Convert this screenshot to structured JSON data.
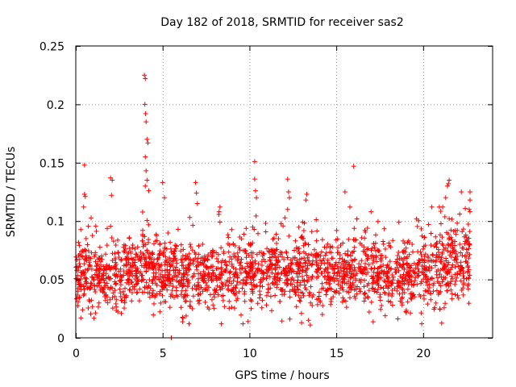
{
  "chart_data": {
    "type": "scatter",
    "title": "Day 182 of 2018, SRMTID for receiver sas2",
    "xlabel": "GPS time / hours",
    "ylabel": "SRMTID / TECUs",
    "xlim": [
      0,
      24
    ],
    "ylim": [
      0,
      0.25
    ],
    "x_ticks": [
      0,
      5,
      10,
      15,
      20
    ],
    "x_tick_labels": [
      "0",
      "5",
      "10",
      "15",
      "20"
    ],
    "y_ticks": [
      0,
      0.05,
      0.1,
      0.15,
      0.2,
      0.25
    ],
    "y_tick_labels": [
      "0",
      "0.05",
      "0.1",
      "0.15",
      "0.2",
      "0.25"
    ],
    "grid": true,
    "marker": "+",
    "series_color": "#ff0000",
    "data_range_hours": [
      0,
      22.7
    ],
    "series": [
      {
        "name": "SRMTID",
        "generated": true,
        "seed": 182,
        "count": 2200,
        "baseline_profile": [
          [
            0,
            0.055
          ],
          [
            2,
            0.052
          ],
          [
            4,
            0.062
          ],
          [
            6,
            0.055
          ],
          [
            8,
            0.052
          ],
          [
            10,
            0.056
          ],
          [
            12,
            0.058
          ],
          [
            14,
            0.056
          ],
          [
            16,
            0.057
          ],
          [
            18,
            0.055
          ],
          [
            19.5,
            0.05
          ],
          [
            21,
            0.062
          ],
          [
            22.7,
            0.065
          ]
        ],
        "spread": 0.015,
        "outliers": [
          {
            "x": 0.5,
            "y": 0.148
          },
          {
            "x": 0.5,
            "y": 0.123
          },
          {
            "x": 0.55,
            "y": 0.121
          },
          {
            "x": 0.45,
            "y": 0.112
          },
          {
            "x": 2.0,
            "y": 0.137
          },
          {
            "x": 2.1,
            "y": 0.135
          },
          {
            "x": 2.05,
            "y": 0.122
          },
          {
            "x": 3.95,
            "y": 0.225
          },
          {
            "x": 4.0,
            "y": 0.222
          },
          {
            "x": 3.98,
            "y": 0.2
          },
          {
            "x": 4.02,
            "y": 0.192
          },
          {
            "x": 4.05,
            "y": 0.185
          },
          {
            "x": 4.1,
            "y": 0.17
          },
          {
            "x": 4.15,
            "y": 0.167
          },
          {
            "x": 4.0,
            "y": 0.155
          },
          {
            "x": 4.05,
            "y": 0.143
          },
          {
            "x": 4.1,
            "y": 0.135
          },
          {
            "x": 4.0,
            "y": 0.13
          },
          {
            "x": 4.2,
            "y": 0.126
          },
          {
            "x": 5.0,
            "y": 0.133
          },
          {
            "x": 5.1,
            "y": 0.12
          },
          {
            "x": 5.5,
            "y": 0.0
          },
          {
            "x": 6.9,
            "y": 0.133
          },
          {
            "x": 6.95,
            "y": 0.124
          },
          {
            "x": 7.0,
            "y": 0.115
          },
          {
            "x": 8.3,
            "y": 0.112
          },
          {
            "x": 8.25,
            "y": 0.108
          },
          {
            "x": 10.3,
            "y": 0.151
          },
          {
            "x": 10.3,
            "y": 0.136
          },
          {
            "x": 10.35,
            "y": 0.126
          },
          {
            "x": 10.4,
            "y": 0.12
          },
          {
            "x": 12.2,
            "y": 0.136
          },
          {
            "x": 12.25,
            "y": 0.125
          },
          {
            "x": 12.3,
            "y": 0.12
          },
          {
            "x": 12.2,
            "y": 0.11
          },
          {
            "x": 13.3,
            "y": 0.123
          },
          {
            "x": 13.25,
            "y": 0.118
          },
          {
            "x": 13.5,
            "y": 0.011
          },
          {
            "x": 13.4,
            "y": 0.015
          },
          {
            "x": 15.5,
            "y": 0.125
          },
          {
            "x": 16.0,
            "y": 0.147
          },
          {
            "x": 17.0,
            "y": 0.108
          },
          {
            "x": 21.4,
            "y": 0.13
          },
          {
            "x": 21.5,
            "y": 0.135
          },
          {
            "x": 21.45,
            "y": 0.132
          },
          {
            "x": 21.3,
            "y": 0.12
          },
          {
            "x": 22.2,
            "y": 0.125
          },
          {
            "x": 22.7,
            "y": 0.125
          },
          {
            "x": 22.7,
            "y": 0.118
          },
          {
            "x": 22.65,
            "y": 0.11
          },
          {
            "x": 22.7,
            "y": 0.108
          },
          {
            "x": 22.1,
            "y": 0.106
          },
          {
            "x": 21.5,
            "y": 0.102
          }
        ]
      }
    ]
  }
}
